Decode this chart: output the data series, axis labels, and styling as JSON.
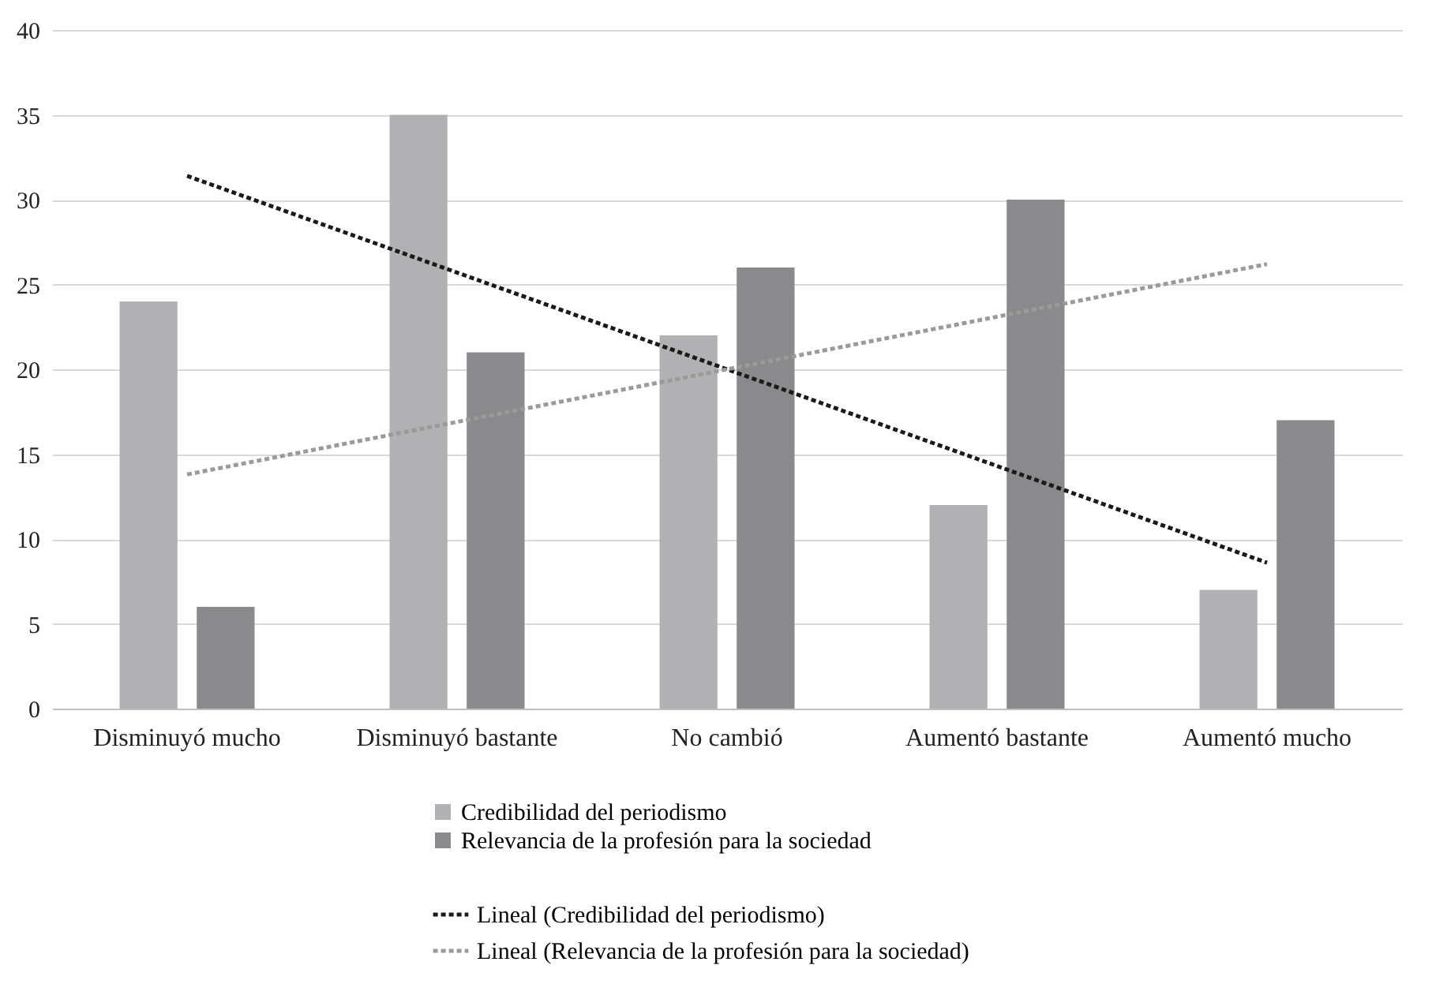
{
  "chart_data": {
    "type": "bar",
    "categories": [
      "Disminuyó mucho",
      "Disminuyó bastante",
      "No cambió",
      "Aumentó bastante",
      "Aumentó mucho"
    ],
    "series": [
      {
        "name": "Credibilidad del periodismo",
        "color": "#b1b1b3",
        "values": [
          24,
          35,
          22,
          12,
          7
        ]
      },
      {
        "name": "Relevancia de la profesión para la sociedad",
        "color": "#8a8a8d",
        "values": [
          6,
          21,
          26,
          30,
          17
        ]
      },
      {
        "name": "Lineal (Credibilidad del periodismo)",
        "type": "line",
        "color": "#1a1a1a",
        "line_style": "dotted",
        "x": [
          "Disminuyó mucho",
          "Aumentó mucho"
        ],
        "values": [
          31.4,
          8.6
        ]
      },
      {
        "name": "Lineal (Relevancia de la profesión para la sociedad)",
        "type": "line",
        "color": "#9a9a9a",
        "line_style": "dotted",
        "x": [
          "Disminuyó mucho",
          "Aumentó mucho"
        ],
        "values": [
          13.8,
          26.2
        ]
      }
    ],
    "ylim": [
      0,
      40
    ],
    "yticks": [
      0,
      5,
      10,
      15,
      20,
      25,
      30,
      35,
      40
    ],
    "grid": "y",
    "legend": "bottom"
  }
}
